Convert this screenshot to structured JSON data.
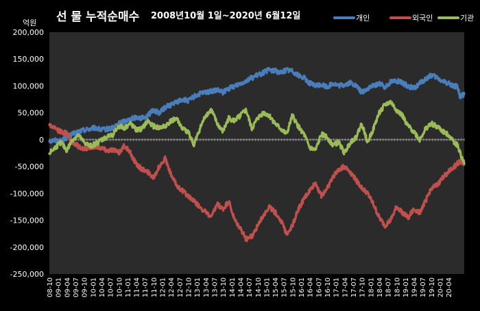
{
  "chart_data": {
    "type": "line",
    "title": "선 물 누적순매수 2008년10월 1일~2020년 6월12일",
    "title_main": "선 물 누적순매수",
    "title_range": "2008년10월 1일~2020년 6월12일",
    "ylabel": "억원",
    "ylim": [
      -250000,
      200000
    ],
    "yticks": [
      200000,
      150000,
      100000,
      50000,
      0,
      -50000,
      -100000,
      -150000,
      -200000,
      -250000
    ],
    "ytick_labels": [
      "200,000",
      "150,000",
      "100,000",
      "50,000",
      "0",
      "-50,000",
      "-100,000",
      "-150,000",
      "-200,000",
      "-250,000"
    ],
    "x_tick_labels": [
      "08-10",
      "09-01",
      "09-04",
      "09-07",
      "09-10",
      "10-01",
      "10-04",
      "10-07",
      "10-10",
      "11-01",
      "11-04",
      "11-07",
      "11-10",
      "12-01",
      "12-04",
      "12-07",
      "12-10",
      "13-01",
      "13-04",
      "13-07",
      "13-10",
      "14-01",
      "14-04",
      "14-07",
      "14-10",
      "15-01",
      "15-04",
      "15-07",
      "15-10",
      "16-01",
      "16-04",
      "16-07",
      "16-10",
      "17-01",
      "17-04",
      "17-07",
      "17-10",
      "18-01",
      "18-04",
      "18-07",
      "18-10",
      "19-01",
      "19-04",
      "19-07",
      "19-10",
      "20-01",
      "20-04"
    ],
    "grid": false,
    "legend_position": "top-right",
    "background": "#2b2b2b",
    "x_months_from_start": [
      0,
      2,
      4,
      6,
      8,
      10,
      12,
      14,
      16,
      18,
      20,
      22,
      24,
      26,
      28,
      30,
      32,
      34,
      36,
      38,
      40,
      42,
      44,
      46,
      48,
      50,
      52,
      54,
      56,
      58,
      60,
      62,
      64,
      66,
      68,
      70,
      72,
      74,
      76,
      78,
      80,
      82,
      84,
      86,
      88,
      90,
      92,
      94,
      96,
      98,
      100,
      102,
      104,
      106,
      108,
      110,
      112,
      114,
      116,
      118,
      120,
      122,
      124,
      126,
      128,
      130,
      132,
      134,
      136,
      138,
      140,
      141,
      142,
      143.4
    ],
    "series": [
      {
        "name": "개인",
        "color": "#4a7ebb",
        "values": [
          -2000,
          -1000,
          -3000,
          5000,
          10000,
          15000,
          18000,
          20000,
          22000,
          18000,
          20000,
          22000,
          30000,
          35000,
          38000,
          42000,
          40000,
          45000,
          55000,
          50000,
          60000,
          65000,
          70000,
          75000,
          72000,
          80000,
          85000,
          88000,
          90000,
          92000,
          88000,
          95000,
          100000,
          105000,
          110000,
          115000,
          120000,
          125000,
          130000,
          128000,
          125000,
          130000,
          128000,
          120000,
          115000,
          105000,
          100000,
          103000,
          98000,
          105000,
          100000,
          102000,
          106000,
          100000,
          88000,
          95000,
          100000,
          105000,
          98000,
          108000,
          110000,
          105000,
          100000,
          95000,
          105000,
          112000,
          120000,
          115000,
          108000,
          105000,
          100000,
          98000,
          80000,
          85000
        ]
      },
      {
        "name": "외국인",
        "color": "#c0504d",
        "values": [
          28000,
          20000,
          15000,
          12000,
          -5000,
          -12000,
          -18000,
          -15000,
          -12000,
          -15000,
          -20000,
          -18000,
          -25000,
          -10000,
          -25000,
          -45000,
          -55000,
          -60000,
          -70000,
          -50000,
          -35000,
          -65000,
          -85000,
          -95000,
          -105000,
          -115000,
          -125000,
          -135000,
          -145000,
          -120000,
          -130000,
          -115000,
          -150000,
          -165000,
          -185000,
          -180000,
          -160000,
          -140000,
          -125000,
          -135000,
          -150000,
          -175000,
          -160000,
          -130000,
          -110000,
          -95000,
          -80000,
          -105000,
          -90000,
          -70000,
          -55000,
          -50000,
          -60000,
          -75000,
          -90000,
          -100000,
          -120000,
          -145000,
          -160000,
          -150000,
          -125000,
          -135000,
          -145000,
          -130000,
          -135000,
          -115000,
          -90000,
          -85000,
          -70000,
          -60000,
          -50000,
          -45000,
          -40000,
          -45000
        ]
      },
      {
        "name": "기관",
        "color": "#9bbb59",
        "values": [
          -25000,
          -15000,
          -5000,
          -20000,
          0,
          8000,
          -5000,
          -12000,
          -8000,
          0,
          5000,
          10000,
          25000,
          22000,
          30000,
          18000,
          20000,
          35000,
          25000,
          22000,
          25000,
          35000,
          40000,
          20000,
          15000,
          -10000,
          20000,
          45000,
          55000,
          30000,
          15000,
          40000,
          35000,
          45000,
          55000,
          20000,
          40000,
          50000,
          45000,
          30000,
          20000,
          10000,
          45000,
          25000,
          10000,
          -15000,
          -20000,
          10000,
          5000,
          -10000,
          -5000,
          -25000,
          -5000,
          5000,
          30000,
          -5000,
          20000,
          50000,
          65000,
          70000,
          55000,
          45000,
          25000,
          15000,
          0,
          20000,
          30000,
          25000,
          15000,
          10000,
          -5000,
          -10000,
          -25000,
          -45000
        ]
      }
    ]
  }
}
